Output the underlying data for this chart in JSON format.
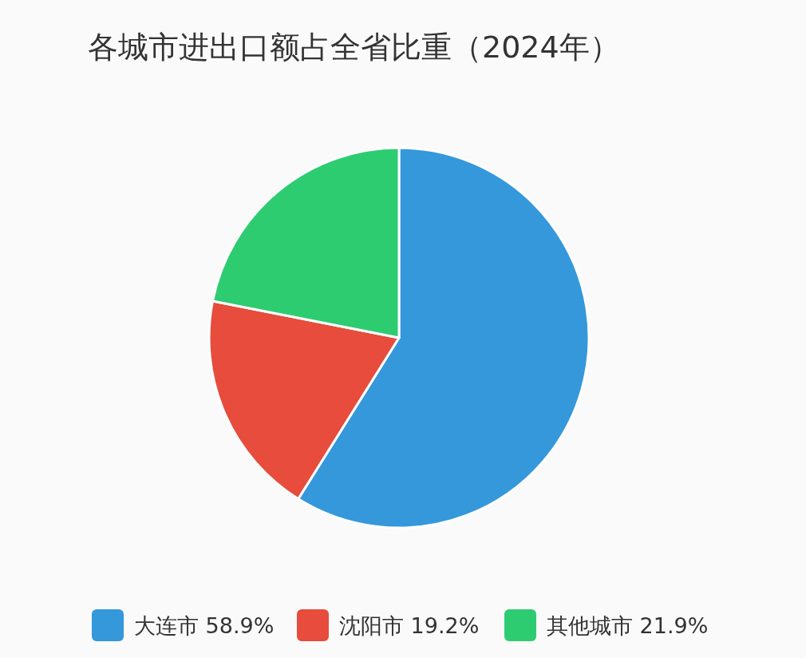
{
  "chart_data": {
    "type": "pie",
    "title": "各城市进出口额占全省比重（2024年）",
    "categories": [
      "大连市",
      "沈阳市",
      "其他城市"
    ],
    "values": [
      58.9,
      19.2,
      21.9
    ],
    "value_labels": [
      "58.9%",
      "19.2%",
      "21.9%"
    ],
    "colors": [
      "#3498db",
      "#e74c3c",
      "#2ecc71"
    ],
    "legend": "bottom"
  }
}
